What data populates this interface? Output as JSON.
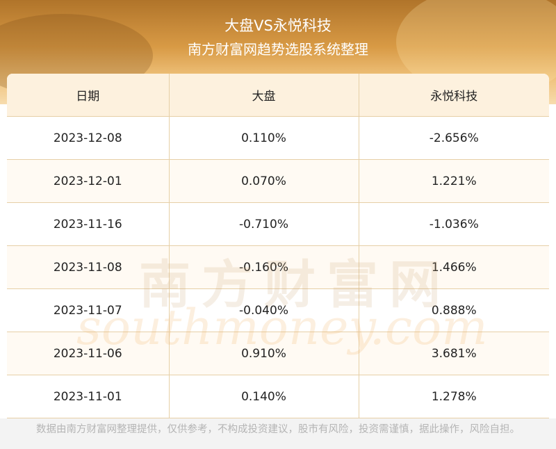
{
  "header": {
    "title": "大盘VS永悦科技",
    "subtitle": "南方财富网趋势选股系统整理"
  },
  "table": {
    "columns": [
      "日期",
      "大盘",
      "永悦科技"
    ],
    "rows": [
      [
        "2023-12-08",
        "0.110%",
        "-2.656%"
      ],
      [
        "2023-12-01",
        "0.070%",
        "1.221%"
      ],
      [
        "2023-11-16",
        "-0.710%",
        "-1.036%"
      ],
      [
        "2023-11-08",
        "-0.160%",
        "1.466%"
      ],
      [
        "2023-11-07",
        "-0.040%",
        "0.888%"
      ],
      [
        "2023-11-06",
        "0.910%",
        "3.681%"
      ],
      [
        "2023-11-01",
        "0.140%",
        "1.278%"
      ]
    ]
  },
  "watermark": {
    "cn": "南方财富网",
    "en": "southmoney.com"
  },
  "footer": {
    "disclaimer": "数据由南方财富网整理提供，仅供参考，不构成投资建议，股市有风险，投资需谨慎，据此操作，风险自担。"
  },
  "colors": {
    "header_gold": "#d89a45",
    "table_border": "#e6cfa6",
    "header_row_bg": "#fdf1de"
  }
}
